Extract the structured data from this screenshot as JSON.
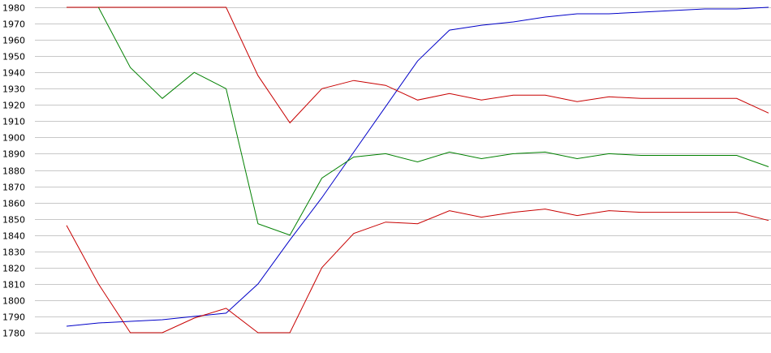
{
  "chart_data": {
    "type": "line",
    "title": "",
    "xlabel": "",
    "ylabel": "",
    "ylim": [
      1780,
      1980
    ],
    "ytick_step": 10,
    "yticks": [
      "1980",
      "1970",
      "1960",
      "1950",
      "1940",
      "1930",
      "1920",
      "1910",
      "1900",
      "1890",
      "1880",
      "1870",
      "1860",
      "1850",
      "1840",
      "1830",
      "1820",
      "1810",
      "1800",
      "1790",
      "1780"
    ],
    "grid": true,
    "legend": "none",
    "x": [
      1,
      2,
      3,
      4,
      5,
      6,
      7,
      8,
      9,
      10,
      11,
      12,
      13,
      14,
      15,
      16,
      17,
      18,
      19,
      20,
      21,
      22,
      23
    ],
    "series": [
      {
        "color": "#0000c8",
        "values": [
          1784,
          1786,
          1787,
          1788,
          1790,
          1792,
          1810,
          1837,
          1863,
          1891,
          1919,
          1947,
          1966,
          1969,
          1971,
          1974,
          1976,
          1976,
          1977,
          1978,
          1979,
          1979,
          1980
        ]
      },
      {
        "color": "#c80000",
        "values": [
          1980,
          1980,
          1980,
          1980,
          1980,
          1980,
          1938,
          1909,
          1930,
          1935,
          1932,
          1923,
          1927,
          1923,
          1926,
          1926,
          1922,
          1925,
          1924,
          1924,
          1924,
          1924,
          1915
        ]
      },
      {
        "color": "#008000",
        "values": [
          null,
          1980,
          1943,
          1924,
          1940,
          1930,
          1847,
          1840,
          1875,
          1888,
          1890,
          1885,
          1891,
          1887,
          1890,
          1891,
          1887,
          1890,
          1889,
          1889,
          1889,
          1889,
          1882
        ]
      },
      {
        "color": "#c80000",
        "values": [
          1846,
          1810,
          1780,
          1780,
          1789,
          1795,
          1780,
          1780,
          1820,
          1841,
          1848,
          1847,
          1855,
          1851,
          1854,
          1856,
          1852,
          1855,
          1854,
          1854,
          1854,
          1854,
          1849
        ]
      }
    ]
  }
}
